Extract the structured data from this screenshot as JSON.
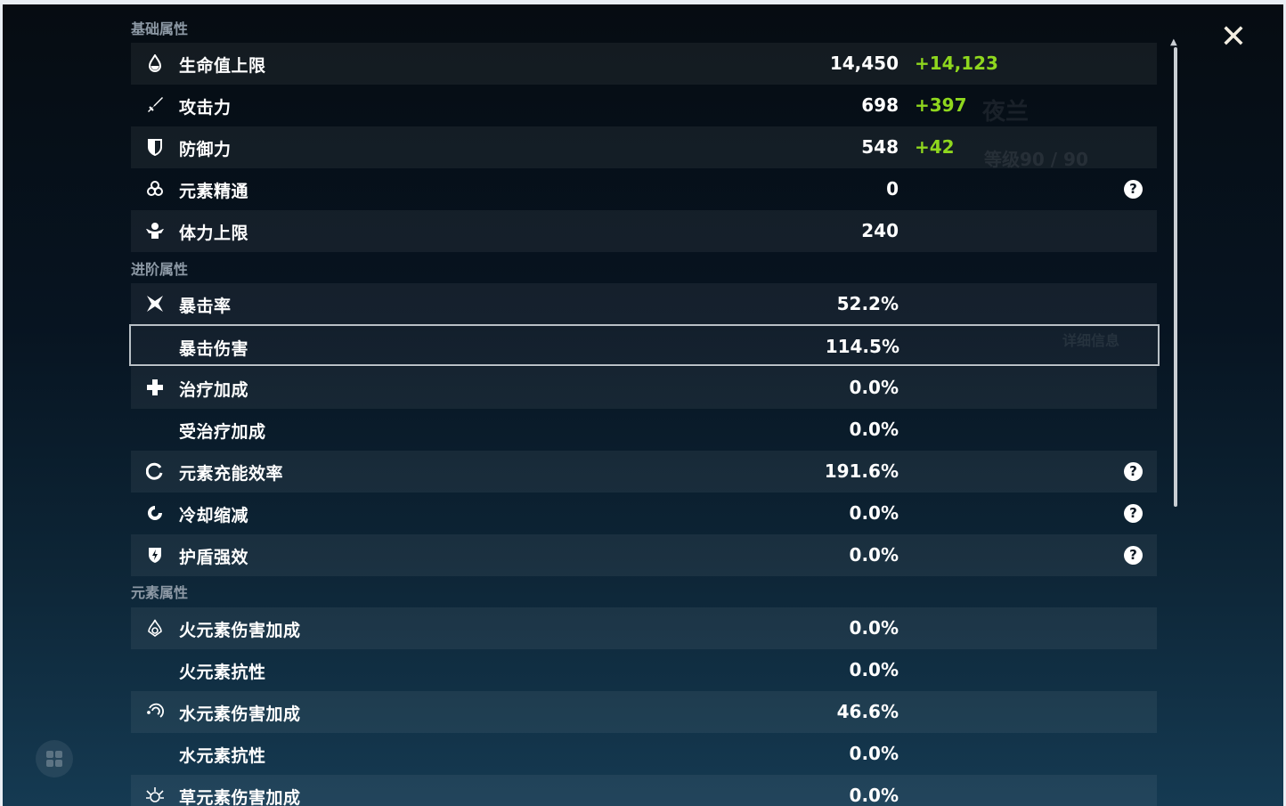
{
  "background": {
    "character_name": "夜兰",
    "level": "等级90 / 90",
    "details_button": "详细信息"
  },
  "sections": [
    {
      "title": "基础属性",
      "rows": [
        {
          "icon": "hp-drop-icon",
          "label": "生命值上限",
          "value": "14,450",
          "bonus": "+14,123"
        },
        {
          "icon": "sword-icon",
          "label": "攻击力",
          "value": "698",
          "bonus": "+397"
        },
        {
          "icon": "shield-icon",
          "label": "防御力",
          "value": "548",
          "bonus": "+42"
        },
        {
          "icon": "elemental-mastery-icon",
          "label": "元素精通",
          "value": "0",
          "help": true
        },
        {
          "icon": "stamina-icon",
          "label": "体力上限",
          "value": "240"
        }
      ]
    },
    {
      "title": "进阶属性",
      "rows": [
        {
          "icon": "crit-rate-icon",
          "label": "暴击率",
          "value": "52.2%"
        },
        {
          "icon": "",
          "label": "暴击伤害",
          "value": "114.5%",
          "selected": true
        },
        {
          "icon": "healing-cross-icon",
          "label": "治疗加成",
          "value": "0.0%"
        },
        {
          "icon": "",
          "label": "受治疗加成",
          "value": "0.0%"
        },
        {
          "icon": "energy-recharge-icon",
          "label": "元素充能效率",
          "value": "191.6%",
          "help": true
        },
        {
          "icon": "cooldown-icon",
          "label": "冷却缩减",
          "value": "0.0%",
          "help": true
        },
        {
          "icon": "shield-strength-icon",
          "label": "护盾强效",
          "value": "0.0%",
          "help": true
        }
      ]
    },
    {
      "title": "元素属性",
      "rows": [
        {
          "icon": "pyro-icon",
          "label": "火元素伤害加成",
          "value": "0.0%"
        },
        {
          "icon": "",
          "label": "火元素抗性",
          "value": "0.0%"
        },
        {
          "icon": "hydro-icon",
          "label": "水元素伤害加成",
          "value": "46.6%"
        },
        {
          "icon": "",
          "label": "水元素抗性",
          "value": "0.0%"
        },
        {
          "icon": "dendro-icon",
          "label": "草元素伤害加成",
          "value": "0.0%"
        }
      ]
    }
  ],
  "help_symbol": "?",
  "close_symbol": "✕",
  "colors": {
    "bonus": "#8fd71e",
    "accent_border": "#b9c0c6"
  }
}
